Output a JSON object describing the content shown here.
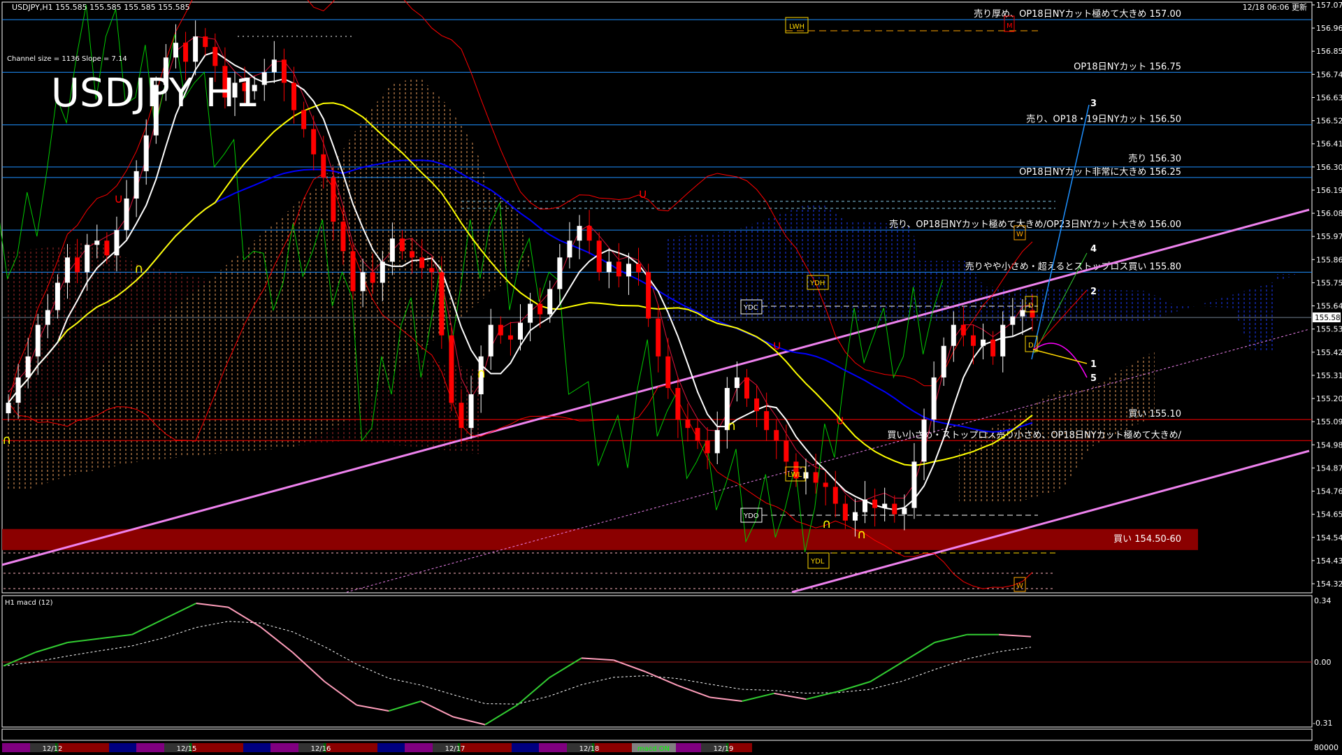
{
  "header": {
    "symbol_info": "USDJPY,H1  155.585 155.585 155.585 155.585",
    "updated": "12/18 06:06 更新",
    "channel_info": "Channel size = 1136 Slope = 7.14",
    "big_title": "USDJPY  H1"
  },
  "chart_data": {
    "type": "candlestick",
    "symbol": "USDJPY",
    "timeframe": "H1",
    "ylim": [
      154.32,
      157.07
    ],
    "current_price": "155.585",
    "price_ticks": [
      "157.070",
      "156.960",
      "156.850",
      "156.740",
      "156.630",
      "156.520",
      "156.410",
      "156.300",
      "156.190",
      "156.080",
      "155.970",
      "155.860",
      "155.750",
      "155.640",
      "155.530",
      "155.420",
      "155.310",
      "155.200",
      "155.090",
      "154.980",
      "154.870",
      "154.760",
      "154.650",
      "154.540",
      "154.430",
      "154.320"
    ],
    "close": [
      155.18,
      155.3,
      155.4,
      155.55,
      155.62,
      155.75,
      155.87,
      155.8,
      155.93,
      155.95,
      155.88,
      156.0,
      156.15,
      156.28,
      156.45,
      156.69,
      156.82,
      156.89,
      156.8,
      156.92,
      156.87,
      156.78,
      156.63,
      156.7,
      156.66,
      156.69,
      156.75,
      156.81,
      156.7,
      156.57,
      156.48,
      156.36,
      156.25,
      156.04,
      155.9,
      155.71,
      155.8,
      155.75,
      155.85,
      155.96,
      155.9,
      155.87,
      155.82,
      155.8,
      155.5,
      155.18,
      155.06,
      155.22,
      155.4,
      155.55,
      155.5,
      155.48,
      155.56,
      155.65,
      155.6,
      155.72,
      155.87,
      155.95,
      156.02,
      155.95,
      155.8,
      155.85,
      155.78,
      155.84,
      155.8,
      155.58,
      155.4,
      155.25,
      155.1,
      155.06,
      155.0,
      154.94,
      155.05,
      155.25,
      155.3,
      155.2,
      155.14,
      155.05,
      155.0,
      154.9,
      154.82,
      154.85,
      154.8,
      154.78,
      154.7,
      154.62,
      154.66,
      154.72,
      154.68,
      154.7,
      154.65,
      154.68,
      154.9,
      155.1,
      155.3,
      155.45,
      155.55,
      155.5,
      155.45,
      155.48,
      155.4,
      155.55,
      155.59,
      155.62,
      155.585
    ],
    "levels": [
      {
        "price": 157.0,
        "label": "売り厚め、OP18日NYカット極めて大きめ 157.00",
        "color": "#1e90ff"
      },
      {
        "price": 156.75,
        "label": "OP18日NYカット 156.75",
        "color": "#1e90ff"
      },
      {
        "price": 156.5,
        "label": "売り、OP18・19日NYカット 156.50",
        "color": "#1e90ff"
      },
      {
        "price": 156.3,
        "label": "売り 156.30",
        "color": "#1e90ff"
      },
      {
        "price": 156.25,
        "label": "OP18日NYカット非常に大きめ 156.25",
        "color": "#1e90ff"
      },
      {
        "price": 156.0,
        "label": "売り、OP18日NYカット極めて大きめ/OP23日NYカット大きめ 156.00",
        "color": "#1e90ff"
      },
      {
        "price": 155.8,
        "label": "売りやや小さめ・超えるとストップロス買い 155.80",
        "color": "#1e90ff"
      },
      {
        "price": 155.1,
        "label": "買い 155.10",
        "color": "#ff0000"
      },
      {
        "price": 155.0,
        "label": "買い小さめ・ストップロス売り小さめ、OP18日NYカット極めて大きめ/",
        "color": "#ff0000"
      }
    ],
    "buy_zone": {
      "from": 154.5,
      "to": 154.6,
      "label": "買い 154.50-60",
      "color": "#8b0000"
    },
    "markers": {
      "lwh": "LWH",
      "m": "M",
      "w1": "W",
      "w2": "W",
      "ydh": "YDH",
      "ydc": "YDC",
      "d1": "D",
      "d2": "D",
      "lwl": "LWL",
      "ydo": "YDO",
      "ydl": "YDL"
    },
    "wave_labels": [
      "1",
      "2",
      "3",
      "4",
      "5"
    ],
    "macd": {
      "label": "H1  macd (12)",
      "ticks": [
        "0.34",
        "0.00",
        "-0.31"
      ],
      "ylim": [
        -0.31,
        0.34
      ],
      "values": [
        -0.02,
        0.05,
        0.1,
        0.12,
        0.14,
        0.22,
        0.3,
        0.28,
        0.18,
        0.05,
        -0.1,
        -0.22,
        -0.25,
        -0.2,
        -0.28,
        -0.32,
        -0.22,
        -0.08,
        0.02,
        0.01,
        -0.05,
        -0.12,
        -0.18,
        -0.2,
        -0.16,
        -0.19,
        -0.15,
        -0.1,
        0.0,
        0.1,
        0.14,
        0.14,
        0.13
      ]
    },
    "volume_tick": "80000",
    "dates": [
      "12/12",
      "12/15",
      "12/16",
      "12/17",
      "12/18",
      "12/19"
    ],
    "macd_toggle": "macd ON"
  },
  "colors": {
    "bull": "#ffffff",
    "bear": "#ff0000",
    "ma_fast": "#ffffff",
    "ma_mid": "#ffff00",
    "ma_slow": "#0000ff",
    "channel": "#ee82ee",
    "chikou": "#00cc00"
  }
}
